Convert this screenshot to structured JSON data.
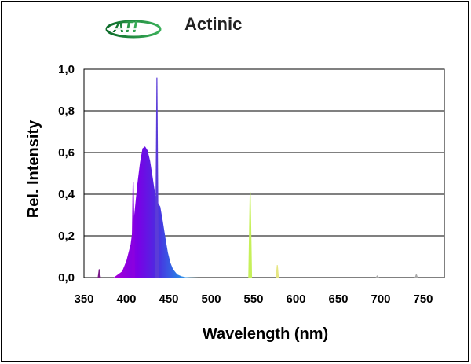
{
  "header": {
    "logo_text": "ATI",
    "title": "Actinic"
  },
  "colors": {
    "logo_green": "#1e8a3c",
    "grid": "#000000",
    "violet": "#7a00e6",
    "blue": "#1a9ee8",
    "yellow_green": "#c6f05a",
    "yellow": "#e8e87a"
  },
  "chart_data": {
    "type": "area",
    "title": "",
    "xlabel": "Wavelength (nm)",
    "ylabel": "Rel. Intensity",
    "xlim": [
      350,
      775
    ],
    "ylim": [
      0,
      1.0
    ],
    "x_ticks": [
      "350",
      "400",
      "450",
      "500",
      "550",
      "600",
      "650",
      "700",
      "750"
    ],
    "x_tick_values": [
      350,
      400,
      450,
      500,
      550,
      600,
      650,
      700,
      750
    ],
    "y_ticks": [
      "0,0",
      "0,2",
      "0,4",
      "0,6",
      "0,8",
      "1,0"
    ],
    "y_tick_values": [
      0,
      0.2,
      0.4,
      0.6,
      0.8,
      1.0
    ],
    "grid": "horizontal",
    "series": [
      {
        "x": [
          385,
          395,
          400,
          405,
          408,
          410,
          413,
          416,
          419,
          422,
          425,
          428,
          431,
          434,
          437,
          440,
          443,
          446,
          449,
          452,
          455,
          460,
          465,
          470,
          475,
          480,
          485
        ],
        "y": [
          0.0,
          0.03,
          0.08,
          0.16,
          0.25,
          0.33,
          0.45,
          0.55,
          0.62,
          0.63,
          0.61,
          0.56,
          0.48,
          0.4,
          0.36,
          0.34,
          0.27,
          0.19,
          0.12,
          0.07,
          0.04,
          0.015,
          0.006,
          0.002,
          0.001,
          0.0005,
          0.0
        ]
      }
    ],
    "peaks": [
      {
        "x": 368,
        "y": 0.04
      },
      {
        "x": 408,
        "y": 0.46
      },
      {
        "x": 436,
        "y": 0.96
      },
      {
        "x": 546,
        "y": 0.41
      },
      {
        "x": 578,
        "y": 0.06
      },
      {
        "x": 696,
        "y": 0.01
      },
      {
        "x": 742,
        "y": 0.015
      }
    ]
  }
}
